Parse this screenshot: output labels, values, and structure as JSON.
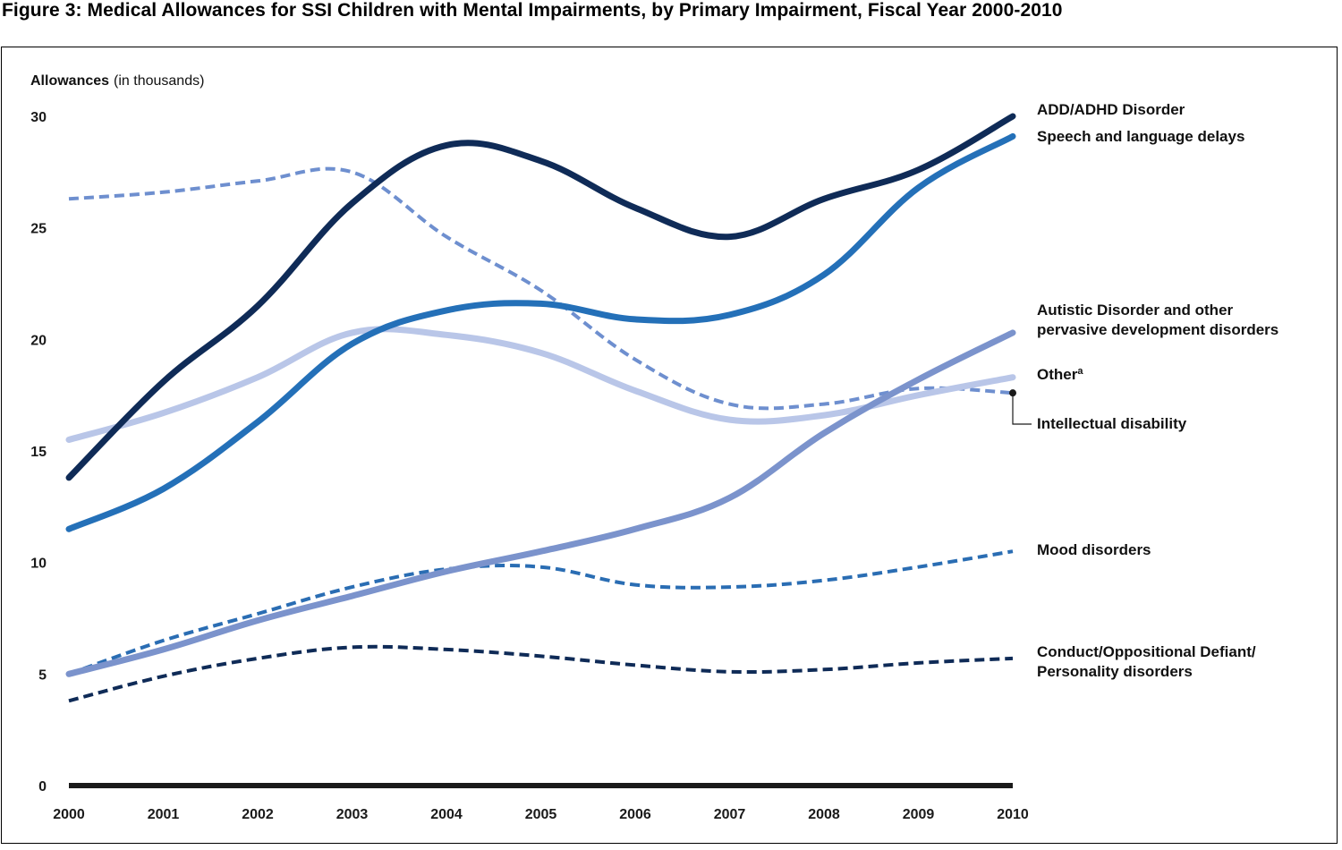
{
  "chart_data": {
    "type": "line",
    "title": "Figure 3: Medical Allowances for SSI Children with Mental Impairments, by Primary Impairment, Fiscal Year 2000-2010",
    "ylabel": "Allowances",
    "ylabel_suffix": "(in thousands)",
    "xlabel": "",
    "ylim": [
      0,
      30
    ],
    "yticks": [
      "0",
      "5",
      "10",
      "15",
      "20",
      "25",
      "30"
    ],
    "yticks_values": [
      0,
      5,
      10,
      15,
      20,
      25,
      30
    ],
    "x": [
      "2000",
      "2001",
      "2002",
      "2003",
      "2004",
      "2005",
      "2006",
      "2007",
      "2008",
      "2009",
      "2010"
    ],
    "grid": false,
    "legend": "right, labels at line ends",
    "series": [
      {
        "name": "ADD/ADHD Disorder",
        "values": [
          13.8,
          18.1,
          21.5,
          26.1,
          28.7,
          28.0,
          25.9,
          24.6,
          26.3,
          27.6,
          30.0
        ],
        "color": "#0f2b57",
        "style": "solid",
        "width": "thick"
      },
      {
        "name": "Speech and language delays",
        "values": [
          11.5,
          13.3,
          16.3,
          19.8,
          21.3,
          21.6,
          20.9,
          21.1,
          22.9,
          26.8,
          29.1
        ],
        "color": "#2470b8",
        "style": "solid",
        "width": "thick"
      },
      {
        "name": "Autistic Disorder and other pervasive development disorders",
        "name_lines": [
          "Autistic Disorder and other",
          "pervasive development disorders"
        ],
        "values": [
          5.0,
          6.1,
          7.4,
          8.5,
          9.6,
          10.5,
          11.5,
          12.9,
          15.8,
          18.2,
          20.3
        ],
        "color": "#7b93cc",
        "style": "solid",
        "width": "thick"
      },
      {
        "name": "Other",
        "name_superscript": "a",
        "values": [
          15.5,
          16.7,
          18.3,
          20.3,
          20.2,
          19.4,
          17.7,
          16.4,
          16.6,
          17.5,
          18.3
        ],
        "color": "#b9c6e8",
        "style": "solid",
        "width": "thick"
      },
      {
        "name": "Intellectual disability",
        "values": [
          26.3,
          26.6,
          27.1,
          27.5,
          24.6,
          22.2,
          19.1,
          17.1,
          17.1,
          17.8,
          17.6
        ],
        "color": "#6e8fcf",
        "style": "dashed",
        "width": "medium"
      },
      {
        "name": "Mood disorders",
        "values": [
          5.0,
          6.5,
          7.7,
          8.9,
          9.7,
          9.8,
          9.0,
          8.9,
          9.2,
          9.8,
          10.5
        ],
        "color": "#2a6db3",
        "style": "dashed",
        "width": "medium"
      },
      {
        "name": "Conduct/Oppositional Defiant/ Personality disorders",
        "name_lines": [
          "Conduct/Oppositional Defiant/",
          "Personality disorders"
        ],
        "values": [
          3.8,
          4.9,
          5.7,
          6.2,
          6.1,
          5.8,
          5.4,
          5.1,
          5.2,
          5.5,
          5.7
        ],
        "color": "#0f2b57",
        "style": "dashed",
        "width": "medium"
      }
    ]
  }
}
